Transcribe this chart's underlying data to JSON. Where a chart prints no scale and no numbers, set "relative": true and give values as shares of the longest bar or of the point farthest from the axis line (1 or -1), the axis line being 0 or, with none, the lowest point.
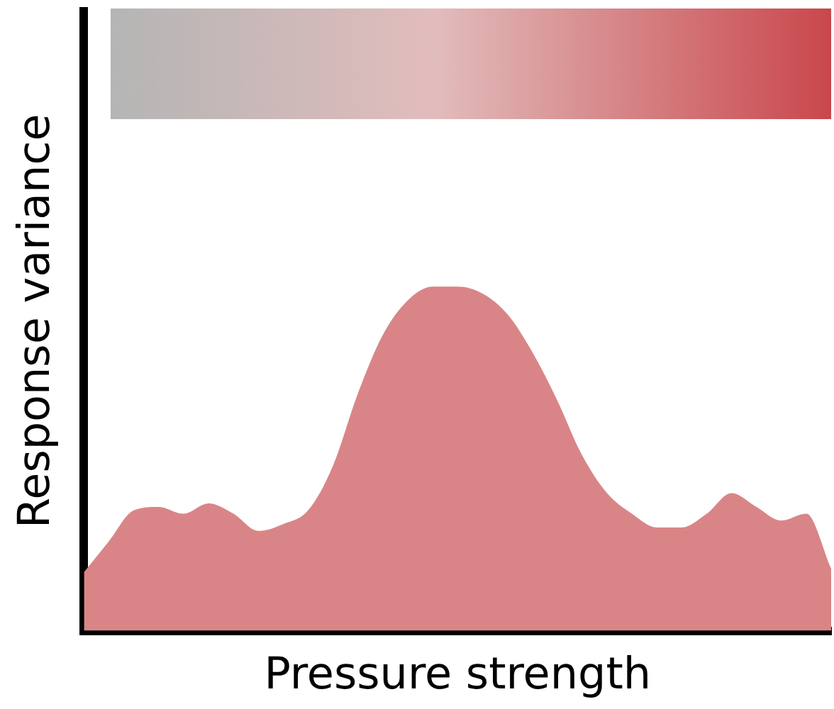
{
  "chart_data": {
    "type": "area",
    "relative": true,
    "xlabel": "Pressure strength",
    "ylabel": "Response variance",
    "categories": [
      null,
      null,
      null,
      null,
      null,
      null,
      null,
      null,
      null,
      null,
      null,
      null,
      null,
      null,
      null,
      null,
      null,
      null,
      null,
      null,
      null,
      null,
      null,
      null,
      null,
      null,
      null,
      null,
      null,
      null,
      null
    ],
    "values": [
      0.17,
      0.26,
      0.35,
      0.36,
      0.34,
      0.37,
      0.34,
      0.29,
      0.31,
      0.35,
      0.48,
      0.69,
      0.86,
      0.96,
      1.0,
      1.0,
      0.98,
      0.92,
      0.81,
      0.67,
      0.51,
      0.4,
      0.34,
      0.3,
      0.3,
      0.34,
      0.4,
      0.36,
      0.32,
      0.34,
      0.18
    ],
    "color": "#d98587",
    "grid": false,
    "legend": false
  }
}
